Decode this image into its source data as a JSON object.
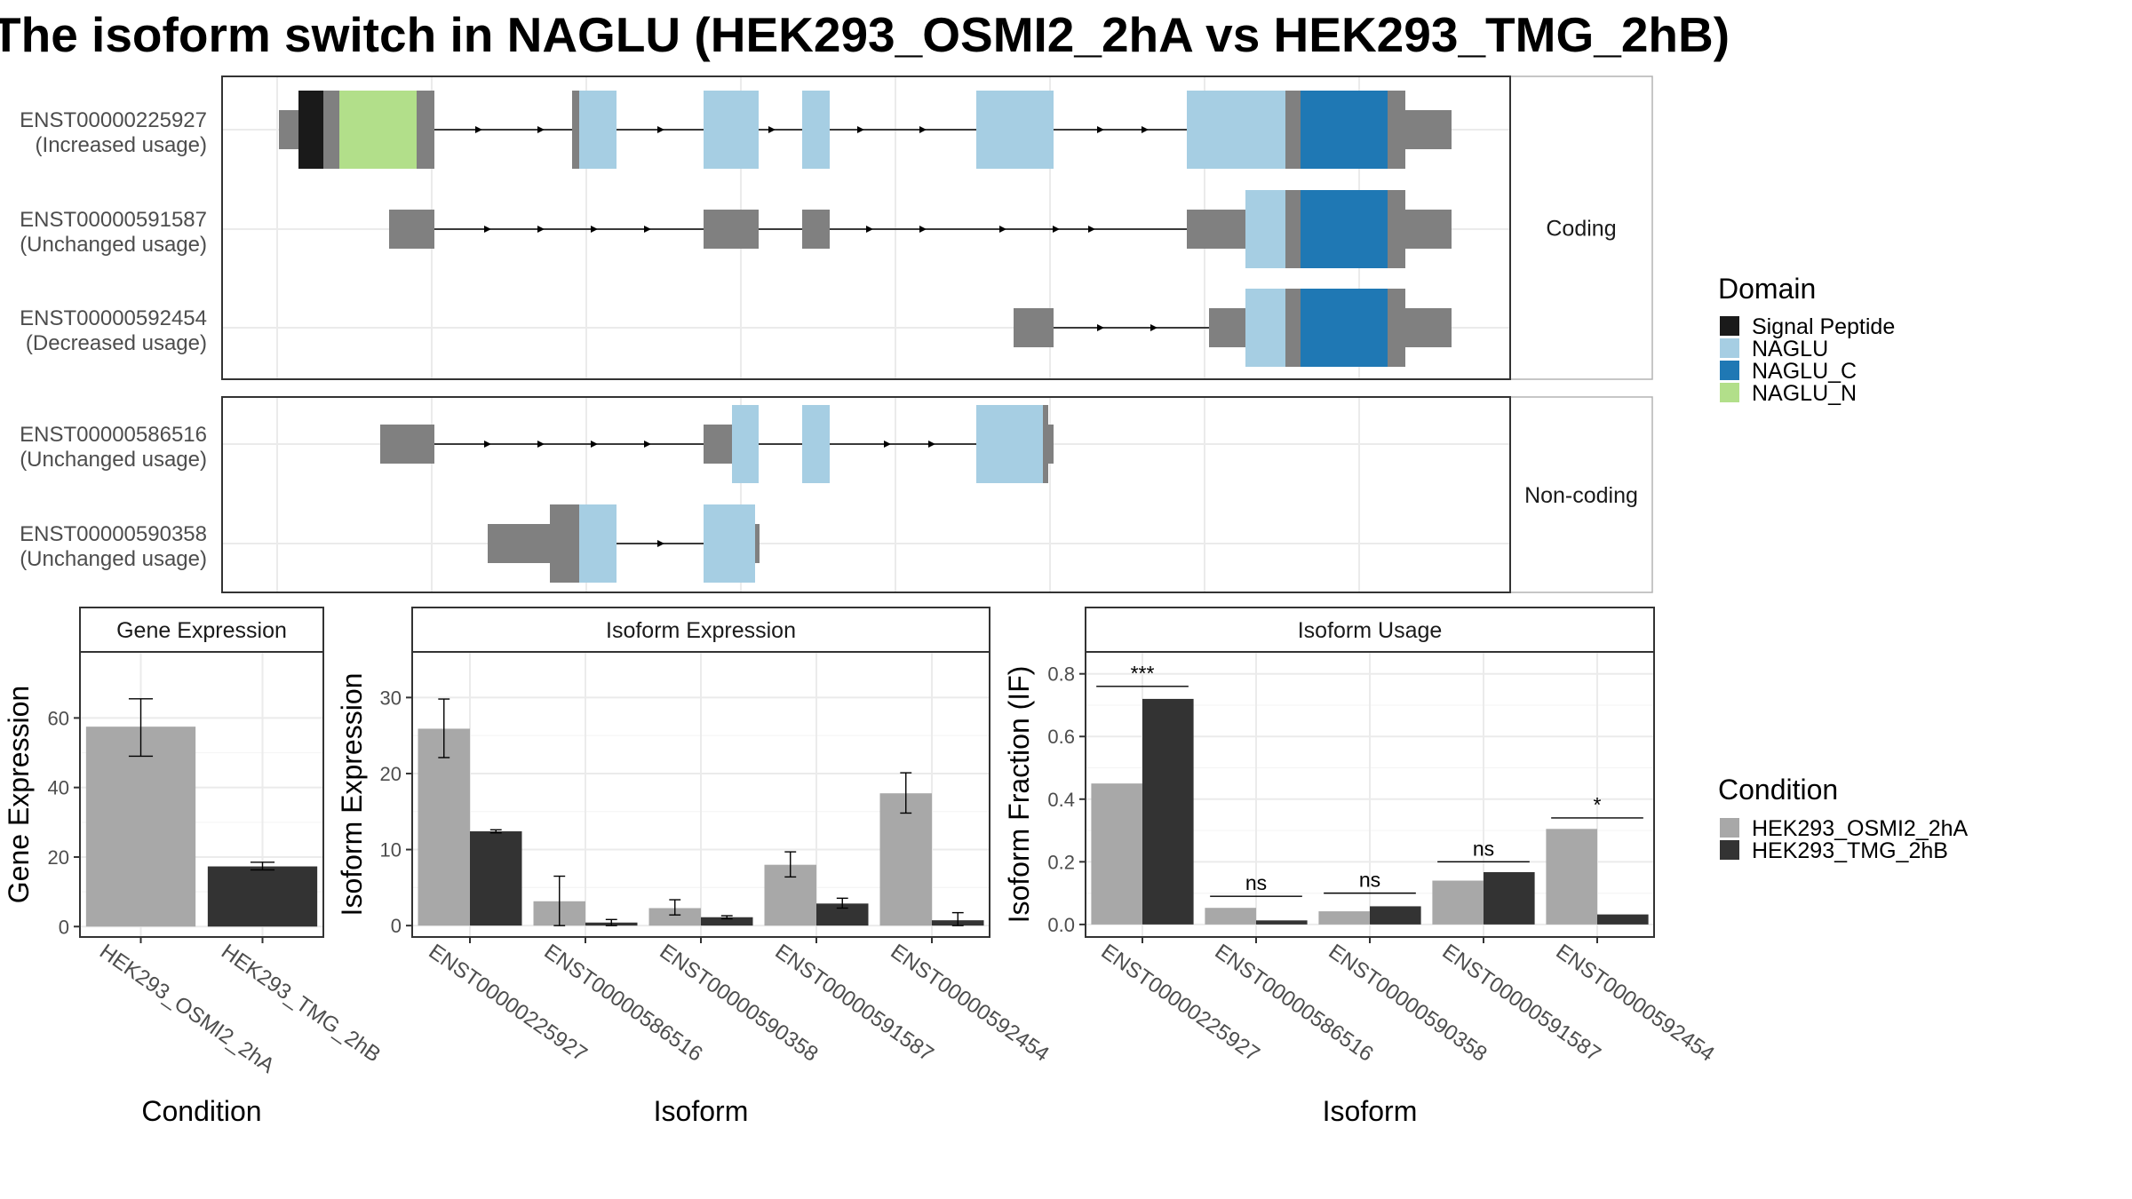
{
  "title": "The isoform switch in NAGLU (HEK293_OSMI2_2hA vs HEK293_TMG_2hB)",
  "colors": {
    "exon": "#808080",
    "signal_peptide": "#1a1a1a",
    "naglu": "#a6cee3",
    "naglu_c": "#1f78b4",
    "naglu_n": "#b2df8a",
    "cond_a": "#a8a8a8",
    "cond_b": "#333333"
  },
  "transcript_panel": {
    "facets": [
      {
        "label": "Coding",
        "transcripts": [
          {
            "id": "ENST00000225927",
            "usage": "(Increased usage)"
          },
          {
            "id": "ENST00000591587",
            "usage": "(Unchanged usage)"
          },
          {
            "id": "ENST00000592454",
            "usage": "(Decreased usage)"
          }
        ]
      },
      {
        "label": "Non-coding",
        "transcripts": [
          {
            "id": "ENST00000586516",
            "usage": "(Unchanged usage)"
          },
          {
            "id": "ENST00000590358",
            "usage": "(Unchanged usage)"
          }
        ]
      }
    ]
  },
  "legends": {
    "domain": {
      "title": "Domain",
      "items": [
        {
          "label": "Signal Peptide",
          "color": "#1a1a1a"
        },
        {
          "label": "NAGLU",
          "color": "#a6cee3"
        },
        {
          "label": "NAGLU_C",
          "color": "#1f78b4"
        },
        {
          "label": "NAGLU_N",
          "color": "#b2df8a"
        }
      ]
    },
    "condition": {
      "title": "Condition",
      "items": [
        {
          "label": "HEK293_OSMI2_2hA",
          "color": "#a8a8a8"
        },
        {
          "label": "HEK293_TMG_2hB",
          "color": "#333333"
        }
      ]
    }
  },
  "chart_data": [
    {
      "type": "bar",
      "title": "Gene Expression",
      "xlabel": "Condition",
      "ylabel": "Gene Expression",
      "categories": [
        "HEK293_OSMI2_2hA",
        "HEK293_TMG_2hB"
      ],
      "values": [
        57.5,
        17.3
      ],
      "error_low": [
        49,
        16.3
      ],
      "error_high": [
        65.5,
        18.5
      ],
      "yticks": [
        0,
        20,
        40,
        60
      ],
      "ylim": [
        -3,
        79
      ]
    },
    {
      "type": "bar",
      "title": "Isoform Expression",
      "xlabel": "Isoform",
      "ylabel": "Isoform Expression",
      "categories": [
        "ENST00000225927",
        "ENST00000586516",
        "ENST00000590358",
        "ENST00000591587",
        "ENST00000592454"
      ],
      "series": [
        {
          "name": "HEK293_OSMI2_2hA",
          "values": [
            25.9,
            3.2,
            2.3,
            8.0,
            17.4
          ],
          "error_low": [
            22.1,
            0.0,
            1.4,
            6.4,
            14.8
          ],
          "error_high": [
            29.8,
            6.5,
            3.4,
            9.7,
            20.1
          ]
        },
        {
          "name": "HEK293_TMG_2hB",
          "values": [
            12.4,
            0.4,
            1.1,
            2.9,
            0.7
          ],
          "error_low": [
            12.2,
            0.0,
            0.9,
            2.3,
            0.0
          ],
          "error_high": [
            12.6,
            0.8,
            1.3,
            3.6,
            1.7
          ]
        }
      ],
      "yticks": [
        0,
        10,
        20,
        30
      ],
      "ylim": [
        -1.5,
        36
      ]
    },
    {
      "type": "bar",
      "title": "Isoform Usage",
      "xlabel": "Isoform",
      "ylabel": "Isoform Fraction (IF)",
      "categories": [
        "ENST00000225927",
        "ENST00000586516",
        "ENST00000590358",
        "ENST00000591587",
        "ENST00000592454"
      ],
      "series": [
        {
          "name": "HEK293_OSMI2_2hA",
          "values": [
            0.45,
            0.053,
            0.042,
            0.14,
            0.305
          ]
        },
        {
          "name": "HEK293_TMG_2hB",
          "values": [
            0.72,
            0.013,
            0.058,
            0.167,
            0.032
          ]
        }
      ],
      "significance": [
        "***",
        "ns",
        "ns",
        "ns",
        "*"
      ],
      "sig_y": [
        0.76,
        0.09,
        0.1,
        0.2,
        0.34
      ],
      "yticks": [
        0.0,
        0.2,
        0.4,
        0.6,
        0.8
      ],
      "ylim": [
        -0.04,
        0.87
      ]
    }
  ]
}
